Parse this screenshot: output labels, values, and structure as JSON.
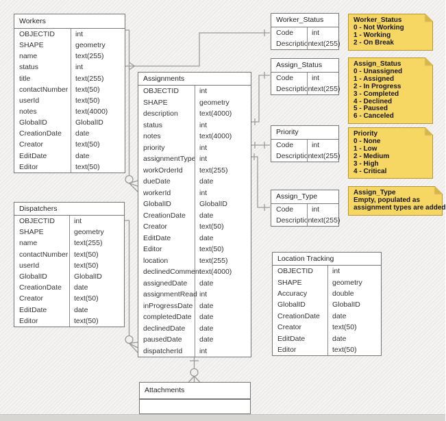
{
  "diagram": {
    "tables": {
      "workers": {
        "title": "Workers",
        "fields": [
          [
            "OBJECTID",
            "int"
          ],
          [
            "SHAPE",
            "geometry"
          ],
          [
            "name",
            "text(255)"
          ],
          [
            "status",
            "int"
          ],
          [
            "title",
            "text(255)"
          ],
          [
            "contactNumber",
            "text(50)"
          ],
          [
            "userId",
            "text(50)"
          ],
          [
            "notes",
            "text(4000)"
          ],
          [
            "GlobalID",
            "GlobalID"
          ],
          [
            "CreationDate",
            "date"
          ],
          [
            "Creator",
            "text(50)"
          ],
          [
            "EditDate",
            "date"
          ],
          [
            "Editor",
            "text(50)"
          ]
        ]
      },
      "dispatchers": {
        "title": "Dispatchers",
        "fields": [
          [
            "OBJECTID",
            "int"
          ],
          [
            "SHAPE",
            "geometry"
          ],
          [
            "name",
            "text(255)"
          ],
          [
            "contactNumber",
            "text(50)"
          ],
          [
            "userId",
            "text(50)"
          ],
          [
            "GlobalID",
            "GlobalID"
          ],
          [
            "CreationDate",
            "date"
          ],
          [
            "Creator",
            "text(50)"
          ],
          [
            "EditDate",
            "date"
          ],
          [
            "Editor",
            "text(50)"
          ]
        ]
      },
      "assignments": {
        "title": "Assignments",
        "fields": [
          [
            "OBJECTID",
            "int"
          ],
          [
            "SHAPE",
            "geometry"
          ],
          [
            "description",
            "text(4000)"
          ],
          [
            "status",
            "int"
          ],
          [
            "notes",
            "text(4000)"
          ],
          [
            "priority",
            "int"
          ],
          [
            "assignmentType",
            "int"
          ],
          [
            "workOrderId",
            "text(255)"
          ],
          [
            "dueDate",
            "date"
          ],
          [
            "workerId",
            "int"
          ],
          [
            "GlobalID",
            "GlobalID"
          ],
          [
            "CreationDate",
            "date"
          ],
          [
            "Creator",
            "text(50)"
          ],
          [
            "EditDate",
            "date"
          ],
          [
            "Editor",
            "text(50)"
          ],
          [
            "location",
            "text(255)"
          ],
          [
            "declinedComment",
            "text(4000)"
          ],
          [
            "assignedDate",
            "date"
          ],
          [
            "assignmentRead",
            "int"
          ],
          [
            "inProgressDate",
            "date"
          ],
          [
            "completedDate",
            "date"
          ],
          [
            "declinedDate",
            "date"
          ],
          [
            "pausedDate",
            "date"
          ],
          [
            "dispatcherId",
            "int"
          ]
        ]
      },
      "worker_status": {
        "title": "Worker_Status",
        "fields": [
          [
            "Code",
            "int"
          ],
          [
            "Description",
            "text(255)"
          ]
        ]
      },
      "assign_status": {
        "title": "Assign_Status",
        "fields": [
          [
            "Code",
            "int"
          ],
          [
            "Description",
            "text(255)"
          ]
        ]
      },
      "priority": {
        "title": "Priority",
        "fields": [
          [
            "Code",
            "int"
          ],
          [
            "Description",
            "text(255)"
          ]
        ]
      },
      "assign_type": {
        "title": "Assign_Type",
        "fields": [
          [
            "Code",
            "int"
          ],
          [
            "Description",
            "text(255)"
          ]
        ]
      },
      "location_tracking": {
        "title": "Location Tracking",
        "fields": [
          [
            "OBJECTID",
            "int"
          ],
          [
            "SHAPE",
            "geometry"
          ],
          [
            "Accuracy",
            "double"
          ],
          [
            "GlobalID",
            "GlobalID"
          ],
          [
            "CreationDate",
            "date"
          ],
          [
            "Creator",
            "text(50)"
          ],
          [
            "EditDate",
            "date"
          ],
          [
            "Editor",
            "text(50)"
          ]
        ]
      },
      "attachments": {
        "title": "Attachments",
        "fields": []
      }
    },
    "notes": {
      "worker_status_note": {
        "title": "Worker_Status",
        "lines": [
          "0 - Not Working",
          "1 - Working",
          "2 - On Break"
        ]
      },
      "assign_status_note": {
        "title": "Assign_Status",
        "lines": [
          "0 - Unassigned",
          "1 - Assigned",
          "2 - In Progress",
          "3 - Completed",
          "4 - Declined",
          "5 - Paused",
          "6 - Canceled"
        ]
      },
      "priority_note": {
        "title": "Priority",
        "lines": [
          "0 - None",
          "1 - Low",
          "2 - Medium",
          "3 - High",
          "4 - Critical"
        ]
      },
      "assign_type_note": {
        "title": "Assign_Type",
        "lines": [
          "Empty, populated as",
          "assignment types are added"
        ]
      }
    },
    "colors": {
      "note_fill": "#f7d763",
      "note_fold": "#d9b64a",
      "note_border": "#b5952f",
      "connector_line": "#999999",
      "table_border": "#767676",
      "canvas_bg": "#f1f0ee"
    }
  }
}
